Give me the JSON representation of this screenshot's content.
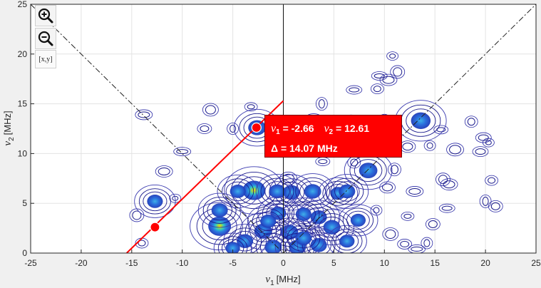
{
  "toolbar": {
    "zoom_in": "zoom-in",
    "zoom_out": "zoom-out",
    "datatip_label": "[x,y]"
  },
  "datatip": {
    "nu1_symbol": "ν",
    "nu1_sub": "1",
    "nu1_value": "= -2.66",
    "nu2_symbol": "ν",
    "nu2_sub": "2",
    "nu2_value": "= 12.61",
    "delta_symbol": "Δ",
    "delta_value": "= 14.07 MHz"
  },
  "colors": {
    "background": "#f0f0f0",
    "plot_background": "#ffffff",
    "contour_line": "#1a1a8c",
    "peak_low": "#1f49c8",
    "peak_high": "#ffd400",
    "marker": "#ff0000",
    "datatip": "#ff0000"
  },
  "chart_data": {
    "type": "contour",
    "xlabel_symbol": "ν",
    "xlabel_sub": "1",
    "xlabel_unit": "[MHz]",
    "ylabel_symbol": "ν",
    "ylabel_sub": "2",
    "ylabel_unit": "[MHz]",
    "xlim": [
      -25,
      25
    ],
    "ylim": [
      0,
      25
    ],
    "xticks": [
      -25,
      -20,
      -15,
      -10,
      -5,
      0,
      5,
      10,
      15,
      20,
      25
    ],
    "yticks": [
      0,
      5,
      10,
      15,
      20,
      25
    ],
    "grid": true,
    "antidiagonal": {
      "style": "dash-dot",
      "x": [
        -25,
        0
      ],
      "y": [
        25,
        0
      ]
    },
    "diagonal": {
      "style": "dash-dot",
      "x": [
        0,
        25
      ],
      "y": [
        0,
        25
      ]
    },
    "red_line": {
      "x": [
        -15.5,
        0
      ],
      "y": [
        0,
        15.3
      ]
    },
    "markers": [
      {
        "x": -12.7,
        "y": 2.6
      },
      {
        "x": -2.66,
        "y": 12.61
      }
    ],
    "peaks": [
      {
        "x": -2.9,
        "y": 6.3,
        "level": 1.0
      },
      {
        "x": -6.3,
        "y": 2.7,
        "level": 1.0
      },
      {
        "x": 0.8,
        "y": 6.1,
        "level": 0.55
      },
      {
        "x": 2.9,
        "y": 6.2,
        "level": 0.55
      },
      {
        "x": -0.6,
        "y": 6.2,
        "level": 0.5
      },
      {
        "x": -4.5,
        "y": 6.2,
        "level": 0.45
      },
      {
        "x": 5.4,
        "y": 6.0,
        "level": 0.4
      },
      {
        "x": 6.3,
        "y": 6.2,
        "level": 0.5
      },
      {
        "x": 8.4,
        "y": 8.3,
        "level": 0.65
      },
      {
        "x": 13.6,
        "y": 13.3,
        "level": 0.75
      },
      {
        "x": -2.6,
        "y": 12.6,
        "level": 0.6
      },
      {
        "x": -12.7,
        "y": 5.2,
        "level": 0.45
      },
      {
        "x": -6.3,
        "y": 4.3,
        "level": 0.5
      },
      {
        "x": 3.5,
        "y": 3.6,
        "level": 0.5
      },
      {
        "x": 4.8,
        "y": 2.6,
        "level": 0.55
      },
      {
        "x": 2.0,
        "y": 3.9,
        "level": 0.45
      },
      {
        "x": -0.5,
        "y": 4.0,
        "level": 0.45
      },
      {
        "x": 0.6,
        "y": 2.1,
        "level": 0.6
      },
      {
        "x": -2.0,
        "y": 2.2,
        "level": 0.6
      },
      {
        "x": -1.0,
        "y": 0.6,
        "level": 0.55
      },
      {
        "x": 1.4,
        "y": 0.6,
        "level": 0.55
      },
      {
        "x": 3.5,
        "y": 0.8,
        "level": 0.5
      },
      {
        "x": -3.8,
        "y": 1.2,
        "level": 0.5
      },
      {
        "x": 6.3,
        "y": 1.2,
        "level": 0.4
      },
      {
        "x": 7.4,
        "y": 3.3,
        "level": 0.4
      },
      {
        "x": -5.0,
        "y": 0.5,
        "level": 0.35
      },
      {
        "x": 2.0,
        "y": 1.5,
        "level": 0.5
      },
      {
        "x": -1.5,
        "y": 3.2,
        "level": 0.45
      }
    ],
    "contour_islands": [
      {
        "x": 10.8,
        "y": 19.8
      },
      {
        "x": 11.3,
        "y": 18.2
      },
      {
        "x": 10.4,
        "y": 17.4
      },
      {
        "x": 9.3,
        "y": 16.5
      },
      {
        "x": 7.0,
        "y": 16.4
      },
      {
        "x": 3.8,
        "y": 15.0
      },
      {
        "x": 6.7,
        "y": 13.3
      },
      {
        "x": 3.0,
        "y": 13.5
      },
      {
        "x": -3.2,
        "y": 14.7
      },
      {
        "x": -7.2,
        "y": 14.4
      },
      {
        "x": -5.0,
        "y": 12.5
      },
      {
        "x": -7.8,
        "y": 12.5
      },
      {
        "x": -10.0,
        "y": 10.2
      },
      {
        "x": 10.0,
        "y": 13.3
      },
      {
        "x": 12.3,
        "y": 10.7
      },
      {
        "x": 14.5,
        "y": 10.8
      },
      {
        "x": 15.6,
        "y": 12.4
      },
      {
        "x": 17.0,
        "y": 10.4
      },
      {
        "x": 18.6,
        "y": 13.2
      },
      {
        "x": 19.5,
        "y": 10.2
      },
      {
        "x": 20.3,
        "y": 11.1
      },
      {
        "x": 15.8,
        "y": 7.4
      },
      {
        "x": 16.4,
        "y": 6.9
      },
      {
        "x": 20.6,
        "y": 7.3
      },
      {
        "x": 16.2,
        "y": 4.5
      },
      {
        "x": 20.0,
        "y": 5.2
      },
      {
        "x": 21.0,
        "y": 4.7
      },
      {
        "x": 13.0,
        "y": 6.2
      },
      {
        "x": 12.3,
        "y": 3.7
      },
      {
        "x": 10.6,
        "y": 1.9
      },
      {
        "x": 14.2,
        "y": 1.0
      },
      {
        "x": 12.0,
        "y": 0.9
      },
      {
        "x": 13.2,
        "y": 0.4
      },
      {
        "x": 11.0,
        "y": 8.4
      },
      {
        "x": 10.3,
        "y": 6.6
      },
      {
        "x": 9.2,
        "y": 4.3
      },
      {
        "x": 3.9,
        "y": 9.2
      },
      {
        "x": 0.5,
        "y": 7.5
      },
      {
        "x": 7.0,
        "y": 9.1
      },
      {
        "x": 19.8,
        "y": 11.6
      },
      {
        "x": -10.7,
        "y": 5.5
      },
      {
        "x": -14.5,
        "y": 3.8
      },
      {
        "x": -11.8,
        "y": 8.2
      },
      {
        "x": -14.0,
        "y": 1.0
      },
      {
        "x": 9.5,
        "y": 17.8
      },
      {
        "x": 4.4,
        "y": 11.0
      },
      {
        "x": 14.8,
        "y": 2.9
      },
      {
        "x": -13.8,
        "y": 13.9
      }
    ]
  }
}
